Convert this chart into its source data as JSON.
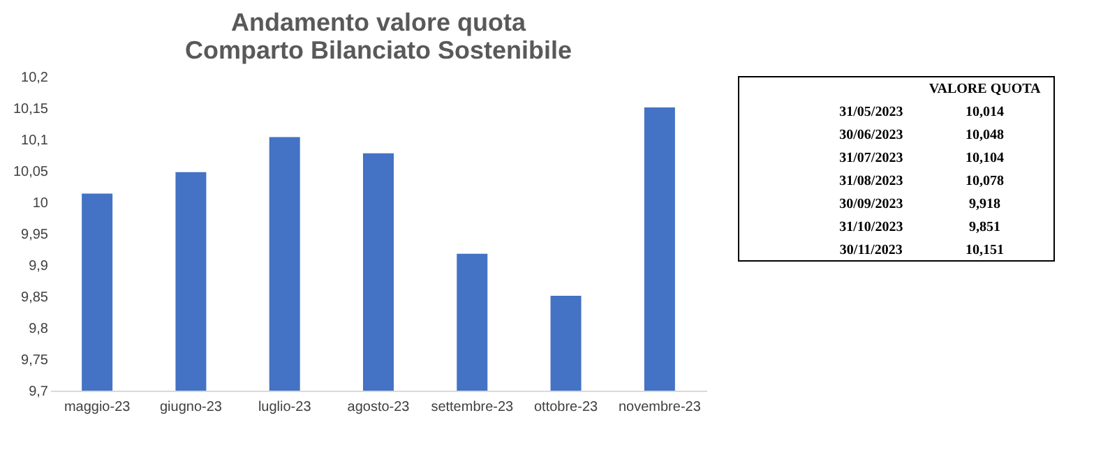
{
  "chart_data": [
    {
      "type": "bar",
      "title": "Andamento valore quota\nComparto Bilanciato Sostenibile",
      "categories": [
        "maggio-23",
        "giugno-23",
        "luglio-23",
        "agosto-23",
        "settembre-23",
        "ottobre-23",
        "novembre-23"
      ],
      "values": [
        10.014,
        10.048,
        10.104,
        10.078,
        9.918,
        9.851,
        10.151
      ],
      "color": "#4472c4",
      "ylim": [
        9.7,
        10.2
      ],
      "yticks": [
        {
          "value": 9.7,
          "label": "9,7"
        },
        {
          "value": 9.75,
          "label": "9,75"
        },
        {
          "value": 9.8,
          "label": "9,8"
        },
        {
          "value": 9.85,
          "label": "9,85"
        },
        {
          "value": 9.9,
          "label": "9,9"
        },
        {
          "value": 9.95,
          "label": "9,95"
        },
        {
          "value": 10,
          "label": "10"
        },
        {
          "value": 10.05,
          "label": "10,05"
        },
        {
          "value": 10.1,
          "label": "10,1"
        },
        {
          "value": 10.15,
          "label": "10,15"
        },
        {
          "value": 10.2,
          "label": "10,2"
        }
      ],
      "grid": false
    },
    {
      "type": "other",
      "annotations": [
        "VALORE QUOTA",
        "31/05/2023",
        "10,014",
        "30/06/2023",
        "10,048",
        "31/07/2023",
        "10,104",
        "31/08/2023",
        "10,078",
        "30/09/2023",
        "9,918",
        "31/10/2023",
        "9,851",
        "30/11/2023",
        "10,151"
      ]
    }
  ]
}
